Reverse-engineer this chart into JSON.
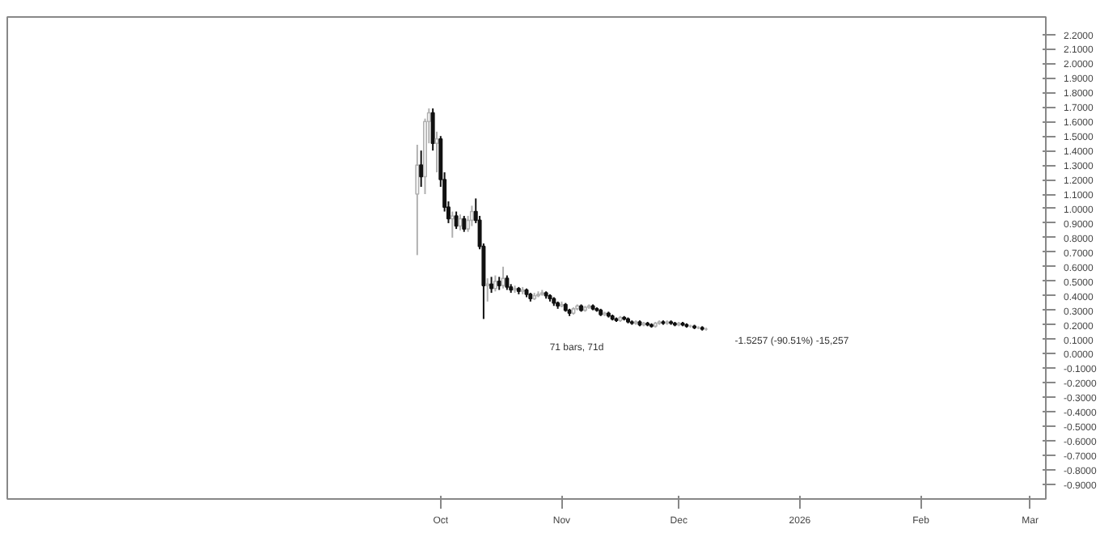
{
  "chart_data": {
    "type": "candlestick",
    "x": [
      "2025-09-25",
      "2025-09-26",
      "2025-09-27",
      "2025-09-28",
      "2025-09-29",
      "2025-09-30",
      "2025-10-01",
      "2025-10-02",
      "2025-10-03",
      "2025-10-04",
      "2025-10-05",
      "2025-10-06",
      "2025-10-07",
      "2025-10-08",
      "2025-10-09",
      "2025-10-10",
      "2025-10-11",
      "2025-10-12",
      "2025-10-13",
      "2025-10-14",
      "2025-10-15",
      "2025-10-16",
      "2025-10-17",
      "2025-10-18",
      "2025-10-19",
      "2025-10-20",
      "2025-10-21",
      "2025-10-22",
      "2025-10-23",
      "2025-10-24",
      "2025-10-25",
      "2025-10-26",
      "2025-10-27",
      "2025-10-28",
      "2025-10-29",
      "2025-10-30",
      "2025-10-31",
      "2025-11-01",
      "2025-11-02",
      "2025-11-03",
      "2025-11-04",
      "2025-11-05",
      "2025-11-06",
      "2025-11-07",
      "2025-11-08",
      "2025-11-09",
      "2025-11-10",
      "2025-11-11",
      "2025-11-12",
      "2025-11-13",
      "2025-11-14",
      "2025-11-15",
      "2025-11-16",
      "2025-11-17",
      "2025-11-18",
      "2025-11-19",
      "2025-11-20",
      "2025-11-21",
      "2025-11-22",
      "2025-11-23",
      "2025-11-24",
      "2025-11-25",
      "2025-11-26",
      "2025-11-27",
      "2025-11-28",
      "2025-11-29",
      "2025-11-30",
      "2025-12-01",
      "2025-12-02",
      "2025-12-03",
      "2025-12-04",
      "2025-12-05",
      "2025-12-06",
      "2025-12-07",
      "2025-12-08"
    ],
    "ohlc": [
      [
        1.1,
        1.44,
        0.68,
        1.3
      ],
      [
        1.3,
        1.4,
        1.15,
        1.22
      ],
      [
        1.22,
        1.62,
        1.1,
        1.6
      ],
      [
        1.6,
        1.69,
        1.45,
        1.66
      ],
      [
        1.66,
        1.69,
        1.4,
        1.45
      ],
      [
        1.45,
        1.53,
        1.25,
        1.48
      ],
      [
        1.48,
        1.5,
        1.15,
        1.2
      ],
      [
        1.2,
        1.25,
        0.98,
        1.01
      ],
      [
        1.01,
        1.05,
        0.9,
        0.93
      ],
      [
        0.93,
        0.98,
        0.8,
        0.95
      ],
      [
        0.95,
        0.98,
        0.86,
        0.88
      ],
      [
        0.88,
        0.96,
        0.85,
        0.93
      ],
      [
        0.93,
        0.95,
        0.84,
        0.86
      ],
      [
        0.86,
        0.95,
        0.84,
        0.92
      ],
      [
        0.92,
        1.02,
        0.88,
        0.98
      ],
      [
        0.98,
        1.07,
        0.9,
        0.92
      ],
      [
        0.92,
        0.95,
        0.72,
        0.74
      ],
      [
        0.74,
        0.76,
        0.24,
        0.47
      ],
      [
        0.47,
        0.52,
        0.36,
        0.48
      ],
      [
        0.48,
        0.53,
        0.42,
        0.45
      ],
      [
        0.45,
        0.54,
        0.43,
        0.5
      ],
      [
        0.5,
        0.53,
        0.44,
        0.47
      ],
      [
        0.47,
        0.6,
        0.45,
        0.52
      ],
      [
        0.52,
        0.54,
        0.44,
        0.46
      ],
      [
        0.46,
        0.48,
        0.42,
        0.44
      ],
      [
        0.44,
        0.47,
        0.42,
        0.45
      ],
      [
        0.45,
        0.46,
        0.41,
        0.43
      ],
      [
        0.43,
        0.46,
        0.41,
        0.44
      ],
      [
        0.44,
        0.45,
        0.39,
        0.41
      ],
      [
        0.41,
        0.42,
        0.36,
        0.38
      ],
      [
        0.38,
        0.42,
        0.37,
        0.4
      ],
      [
        0.4,
        0.43,
        0.39,
        0.41
      ],
      [
        0.41,
        0.44,
        0.4,
        0.42
      ],
      [
        0.42,
        0.43,
        0.38,
        0.4
      ],
      [
        0.4,
        0.41,
        0.36,
        0.38
      ],
      [
        0.38,
        0.39,
        0.33,
        0.35
      ],
      [
        0.35,
        0.36,
        0.31,
        0.33
      ],
      [
        0.33,
        0.36,
        0.32,
        0.34
      ],
      [
        0.34,
        0.35,
        0.29,
        0.3
      ],
      [
        0.3,
        0.31,
        0.26,
        0.28
      ],
      [
        0.28,
        0.32,
        0.27,
        0.31
      ],
      [
        0.31,
        0.34,
        0.3,
        0.33
      ],
      [
        0.33,
        0.34,
        0.29,
        0.3
      ],
      [
        0.3,
        0.33,
        0.29,
        0.32
      ],
      [
        0.32,
        0.34,
        0.31,
        0.33
      ],
      [
        0.33,
        0.34,
        0.3,
        0.31
      ],
      [
        0.31,
        0.32,
        0.29,
        0.3
      ],
      [
        0.3,
        0.31,
        0.26,
        0.27
      ],
      [
        0.27,
        0.29,
        0.26,
        0.28
      ],
      [
        0.28,
        0.29,
        0.25,
        0.26
      ],
      [
        0.26,
        0.27,
        0.23,
        0.24
      ],
      [
        0.24,
        0.25,
        0.22,
        0.23
      ],
      [
        0.23,
        0.26,
        0.22,
        0.25
      ],
      [
        0.25,
        0.26,
        0.23,
        0.24
      ],
      [
        0.24,
        0.25,
        0.21,
        0.22
      ],
      [
        0.22,
        0.23,
        0.2,
        0.21
      ],
      [
        0.21,
        0.23,
        0.2,
        0.22
      ],
      [
        0.22,
        0.23,
        0.19,
        0.2
      ],
      [
        0.2,
        0.22,
        0.19,
        0.21
      ],
      [
        0.21,
        0.22,
        0.19,
        0.2
      ],
      [
        0.2,
        0.21,
        0.18,
        0.19
      ],
      [
        0.19,
        0.22,
        0.18,
        0.21
      ],
      [
        0.21,
        0.23,
        0.2,
        0.22
      ],
      [
        0.22,
        0.23,
        0.2,
        0.21
      ],
      [
        0.21,
        0.23,
        0.2,
        0.22
      ],
      [
        0.22,
        0.23,
        0.2,
        0.21
      ],
      [
        0.21,
        0.22,
        0.19,
        0.2
      ],
      [
        0.2,
        0.22,
        0.19,
        0.21
      ],
      [
        0.21,
        0.22,
        0.19,
        0.2
      ],
      [
        0.2,
        0.21,
        0.18,
        0.19
      ],
      [
        0.19,
        0.2,
        0.18,
        0.19
      ],
      [
        0.19,
        0.2,
        0.17,
        0.18
      ],
      [
        0.18,
        0.19,
        0.17,
        0.18
      ],
      [
        0.18,
        0.19,
        0.16,
        0.17
      ],
      [
        0.17,
        0.18,
        0.16,
        0.17
      ]
    ],
    "xlim": [
      "2025-06-12",
      "2026-03-05"
    ],
    "xticks": [
      {
        "value": "2025-10-01",
        "label": "Oct"
      },
      {
        "value": "2025-11-01",
        "label": "Nov"
      },
      {
        "value": "2025-12-01",
        "label": "Dec"
      },
      {
        "value": "2026-01-01",
        "label": "2026"
      },
      {
        "value": "2026-02-01",
        "label": "Feb"
      },
      {
        "value": "2026-03-01",
        "label": "Mar"
      }
    ],
    "ylim": [
      -1.0,
      2.32
    ],
    "yticks": [
      {
        "value": -0.9,
        "label": "-0.9000"
      },
      {
        "value": -0.8,
        "label": "-0.8000"
      },
      {
        "value": -0.7,
        "label": "-0.7000"
      },
      {
        "value": -0.6,
        "label": "-0.6000"
      },
      {
        "value": -0.5,
        "label": "-0.5000"
      },
      {
        "value": -0.4,
        "label": "-0.4000"
      },
      {
        "value": -0.3,
        "label": "-0.3000"
      },
      {
        "value": -0.2,
        "label": "-0.2000"
      },
      {
        "value": -0.1,
        "label": "-0.1000"
      },
      {
        "value": 0,
        "label": "0.0000"
      },
      {
        "value": 0.1,
        "label": "0.1000"
      },
      {
        "value": 0.2,
        "label": "0.2000"
      },
      {
        "value": 0.3,
        "label": "0.3000"
      },
      {
        "value": 0.4,
        "label": "0.4000"
      },
      {
        "value": 0.5,
        "label": "0.5000"
      },
      {
        "value": 0.6,
        "label": "0.6000"
      },
      {
        "value": 0.7,
        "label": "0.7000"
      },
      {
        "value": 0.8,
        "label": "0.8000"
      },
      {
        "value": 0.9,
        "label": "0.9000"
      },
      {
        "value": 1.0,
        "label": "1.0000"
      },
      {
        "value": 1.1,
        "label": "1.1000"
      },
      {
        "value": 1.2,
        "label": "1.2000"
      },
      {
        "value": 1.3,
        "label": "1.3000"
      },
      {
        "value": 1.4,
        "label": "1.4000"
      },
      {
        "value": 1.5,
        "label": "1.5000"
      },
      {
        "value": 1.6,
        "label": "1.6000"
      },
      {
        "value": 1.7,
        "label": "1.7000"
      },
      {
        "value": 1.8,
        "label": "1.8000"
      },
      {
        "value": 1.9,
        "label": "1.9000"
      },
      {
        "value": 2.0,
        "label": "2.0000"
      },
      {
        "value": 2.1,
        "label": "2.1000"
      },
      {
        "value": 2.2,
        "label": "2.2000"
      }
    ],
    "annotations": [
      "71 bars, 71d",
      "-1.5257 (-90.51%) -15,257"
    ],
    "grid": false
  }
}
